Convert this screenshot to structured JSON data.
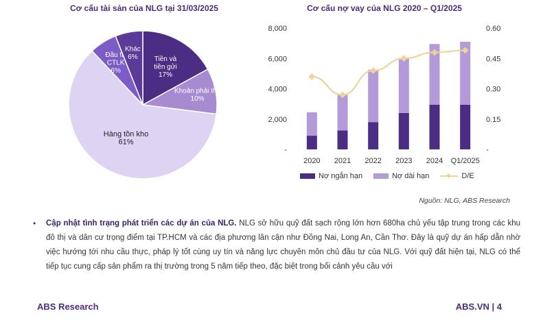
{
  "chart_data": [
    {
      "type": "pie",
      "title": "Cơ cấu tài sản của NLG tại 31/03/2025",
      "slices": [
        {
          "name_lines": [
            "Tiền và",
            "tiền gửi"
          ],
          "value": 17,
          "label": "17%",
          "color": "#4b2d83",
          "text_color": "#ffffff"
        },
        {
          "name_lines": [
            "Khoản phải thu"
          ],
          "value": 10,
          "label": "10%",
          "color": "#a68bd1",
          "text_color": "#ffffff"
        },
        {
          "name_lines": [
            "Hàng tồn kho"
          ],
          "value": 61,
          "label": "61%",
          "color": "#ddd3f2",
          "text_color": "#222222"
        },
        {
          "name_lines": [
            "Đầu tư",
            "CTLK"
          ],
          "value": 6,
          "label": "6%",
          "color": "#7c5cc7",
          "text_color": "#ffffff"
        },
        {
          "name_lines": [
            "Khác"
          ],
          "value": 6,
          "label": "6%",
          "color": "#5b3a99",
          "text_color": "#ffffff"
        }
      ]
    },
    {
      "type": "bar",
      "title": "Cơ cấu nợ vay của NLG 2020 – Q1/2025",
      "categories": [
        "2020",
        "2021",
        "2022",
        "2023",
        "2024",
        "Q1/2025"
      ],
      "series": [
        {
          "name": "Nợ ngắn hạn",
          "kind": "stacked-bar",
          "values": [
            900,
            1250,
            1800,
            2400,
            2950,
            2950
          ],
          "color": "#4b2d83"
        },
        {
          "name": "Nợ dài hạn",
          "kind": "stacked-bar",
          "values": [
            1550,
            2350,
            3450,
            3600,
            4000,
            4150
          ],
          "color": "#b39ad9"
        },
        {
          "name": "D/E",
          "kind": "line",
          "axis": "right",
          "values": [
            0.36,
            0.27,
            0.39,
            0.45,
            0.48,
            0.49
          ],
          "color": "#efd49a"
        }
      ],
      "y_left": {
        "min": 0,
        "max": 8000,
        "ticks": [
          "-",
          "2,000",
          "4,000",
          "6,000",
          "8,000"
        ]
      },
      "y_right": {
        "min": 0,
        "max": 0.6,
        "ticks": [
          "-",
          "0.15",
          "0.30",
          "0.45",
          "0.60"
        ]
      }
    }
  ],
  "source": "Nguồn: NLG, ABS Research",
  "bullet": {
    "lead": "Cập nhật tình trạng phát triển các dự án của NLG.",
    "body": " NLG sở hữu quỹ đất sạch rộng lớn hơn 680ha chủ yếu tập trung trong các khu đô thị và dân cư trọng điểm tại TP.HCM và các địa phương lân cận như Đồng Nai, Long An, Cần Thơ. Đây là quỹ dự án hấp dẫn nhờ việc hướng tới nhu cầu thực, pháp lý tốt cùng uy tín và năng lực chuyên môn chủ đầu tư của NLG. Với quỹ đất hiện tại, NLG có thể tiếp tục cung cấp sản phẩm ra thị trường trong 5 năm tiếp theo, đặc biệt trong bối cảnh yêu cầu với"
  },
  "footer": {
    "left": "ABS Research",
    "right": "ABS.VN | 4"
  }
}
